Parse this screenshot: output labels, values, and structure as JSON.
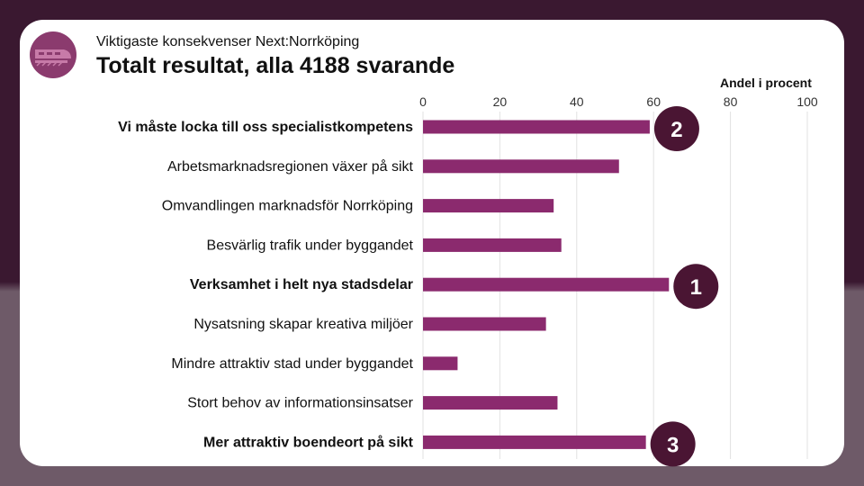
{
  "header": {
    "subtitle": "Viktigaste konsekvenser Next:Norrköping",
    "title": "Totalt resultat, alla 4188 svarande"
  },
  "logo": {
    "icon": "train-logo-icon"
  },
  "colors": {
    "bar": "#8b2a6e",
    "badge": "#4a1533",
    "grid": "#e2e2e2",
    "logo": "#8b3b6e"
  },
  "chart_data": {
    "type": "bar",
    "orientation": "horizontal",
    "xlabel": "Andel i procent",
    "xlim": [
      0,
      100
    ],
    "xticks": [
      0,
      20,
      40,
      60,
      80,
      100
    ],
    "grid": true,
    "categories": [
      "Vi måste locka till oss specialistkompetens",
      "Arbetsmarknadsregionen växer på sikt",
      "Omvandlingen marknadsför Norrköping",
      "Besvärlig trafik under byggandet",
      "Verksamhet i helt nya stadsdelar",
      "Nysatsning skapar kreativa miljöer",
      "Mindre attraktiv stad under byggandet",
      "Stort behov av informationsinsatser",
      "Mer attraktiv boendeort på sikt"
    ],
    "values": [
      59,
      51,
      34,
      36,
      64,
      32,
      9,
      35,
      58
    ],
    "bold": [
      true,
      false,
      false,
      false,
      true,
      false,
      false,
      false,
      true
    ],
    "rank_badges": [
      {
        "index": 0,
        "label": "2"
      },
      {
        "index": 4,
        "label": "1"
      },
      {
        "index": 8,
        "label": "3"
      }
    ]
  }
}
